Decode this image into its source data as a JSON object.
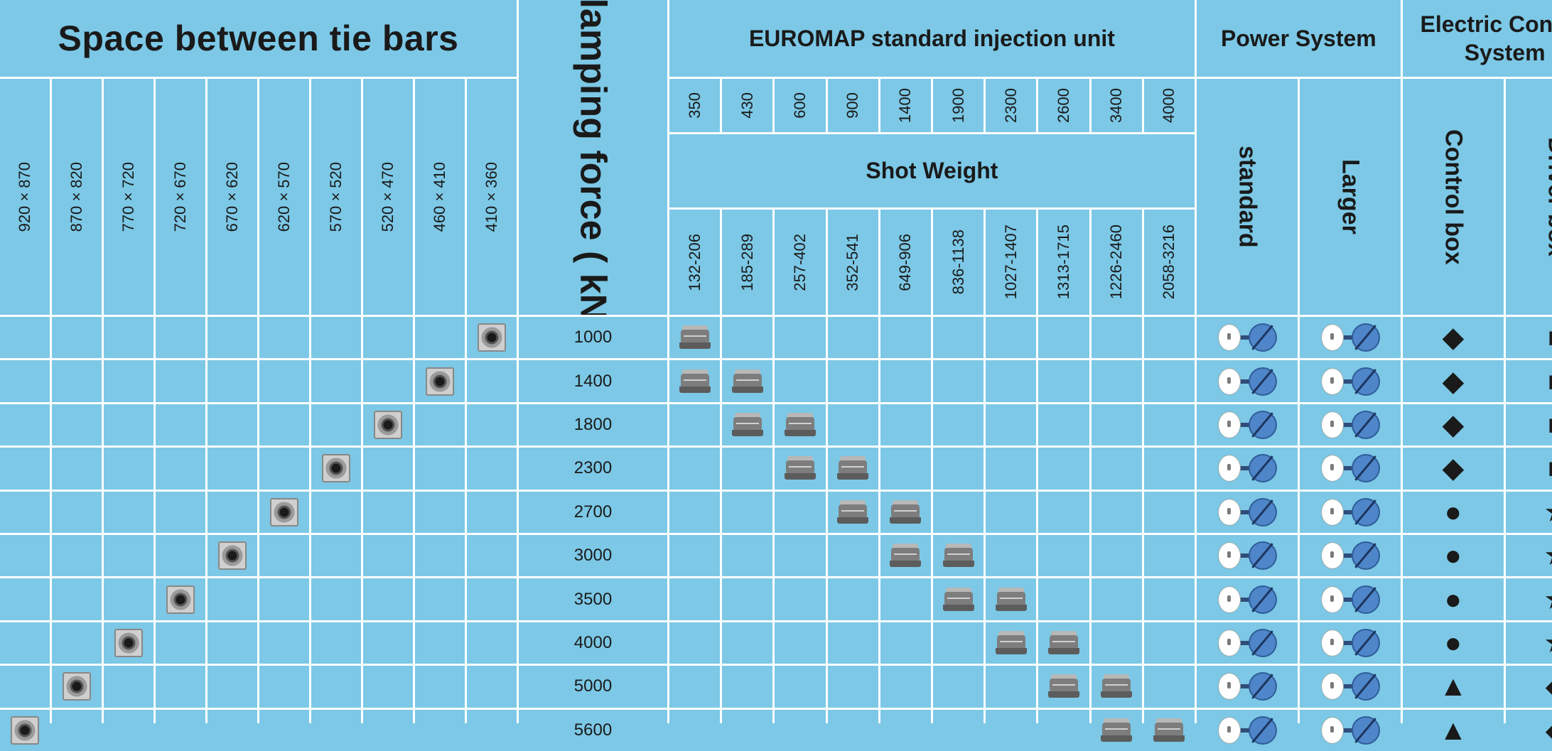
{
  "headers": {
    "tie_bars": "Space between tie bars",
    "clamping": "Clamping force ( kN )",
    "euromap": "EUROMAP standard injection unit",
    "shot_weight": "Shot Weight",
    "power_system": "Power System",
    "electric_control": "Electric Control System",
    "standard": "standard",
    "larger": "Larger",
    "control_box": "Control box",
    "driver_box": "Driver box"
  },
  "tie_bar_sizes": [
    "920×870",
    "870×820",
    "770×720",
    "720×670",
    "670×620",
    "620×570",
    "570×520",
    "520×470",
    "460×410",
    "410×360"
  ],
  "euromap_sizes": [
    "350",
    "430",
    "600",
    "900",
    "1400",
    "1900",
    "2300",
    "2600",
    "3400",
    "4000"
  ],
  "shot_weights": [
    "132-206",
    "185-289",
    "257-402",
    "352-541",
    "649-906",
    "836-1138",
    "1027-1407",
    "1313-1715",
    "1226-2460",
    "2058-3216"
  ],
  "rows": [
    {
      "force": "1000",
      "tie_col": 9,
      "unit_cols": [
        0
      ],
      "control": "◆",
      "driver": "■"
    },
    {
      "force": "1400",
      "tie_col": 8,
      "unit_cols": [
        0,
        1
      ],
      "control": "◆",
      "driver": "■"
    },
    {
      "force": "1800",
      "tie_col": 7,
      "unit_cols": [
        1,
        2
      ],
      "control": "◆",
      "driver": "■"
    },
    {
      "force": "2300",
      "tie_col": 6,
      "unit_cols": [
        2,
        3
      ],
      "control": "◆",
      "driver": "■"
    },
    {
      "force": "2700",
      "tie_col": 5,
      "unit_cols": [
        3,
        4
      ],
      "control": "●",
      "driver": "★"
    },
    {
      "force": "3000",
      "tie_col": 4,
      "unit_cols": [
        4,
        5
      ],
      "control": "●",
      "driver": "★"
    },
    {
      "force": "3500",
      "tie_col": 3,
      "unit_cols": [
        5,
        6
      ],
      "control": "●",
      "driver": "★"
    },
    {
      "force": "4000",
      "tie_col": 2,
      "unit_cols": [
        6,
        7
      ],
      "control": "●",
      "driver": "★"
    },
    {
      "force": "5000",
      "tie_col": 1,
      "unit_cols": [
        7,
        8
      ],
      "control": "▲",
      "driver": "◆"
    },
    {
      "force": "5600",
      "tie_col": 0,
      "unit_cols": [
        8,
        9
      ],
      "control": "▲",
      "driver": "◆"
    }
  ],
  "icons": {
    "tie_marker": "tie-bar-marker-icon",
    "injection_unit": "injection-unit-icon",
    "power_standard": "servo-motor-icon",
    "power_larger": "servo-motor-icon"
  },
  "colors": {
    "background": "#7cc8e6",
    "grid_lines": "#ffffff",
    "text": "#1a1a1a"
  }
}
